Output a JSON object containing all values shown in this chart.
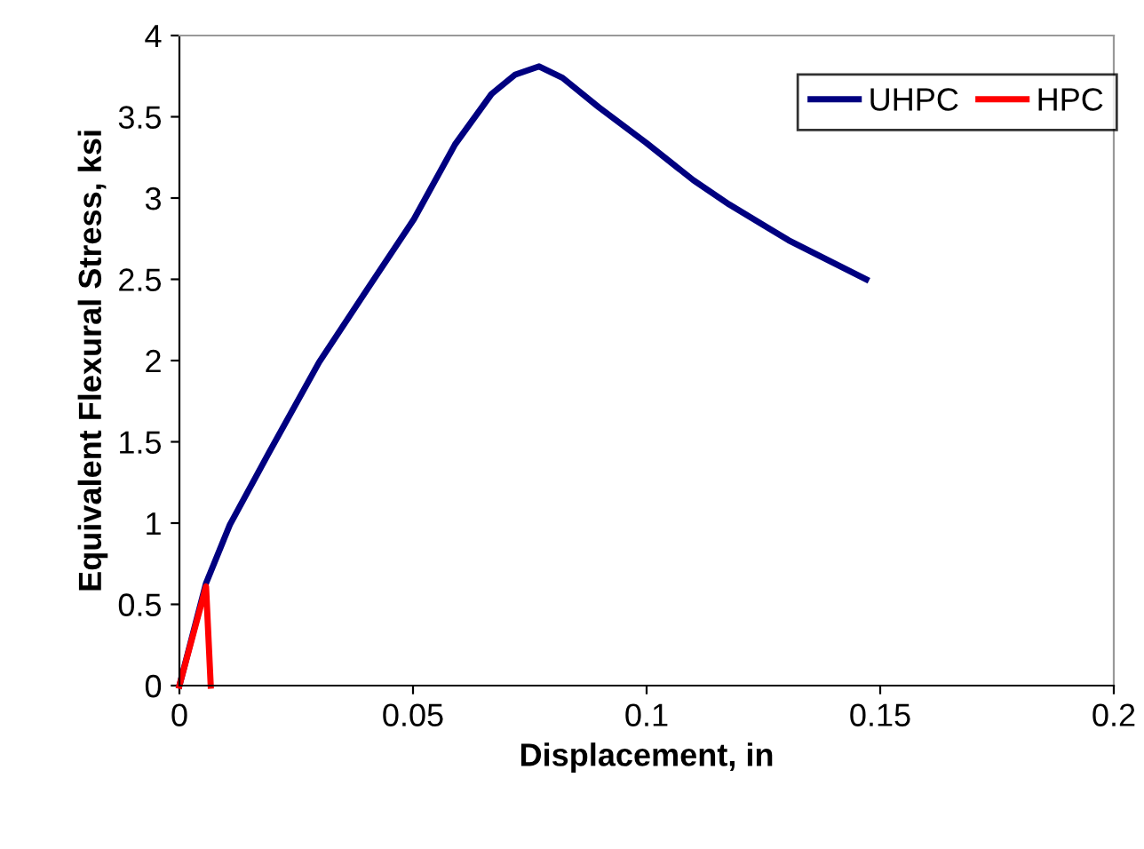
{
  "chart_data": {
    "type": "line",
    "xlabel": "Displacement, in",
    "ylabel": "Equivalent Flexural Stress, ksi",
    "series": [
      {
        "name": "UHPC",
        "color": "#000080",
        "x": [
          0,
          0.0057,
          0.0108,
          0.0191,
          0.0299,
          0.04,
          0.0502,
          0.059,
          0.0668,
          0.0719,
          0.077,
          0.082,
          0.0897,
          0.0999,
          0.11,
          0.1177,
          0.1304,
          0.147
        ],
        "values": [
          0,
          0.63,
          0.99,
          1.43,
          1.99,
          2.43,
          2.87,
          3.33,
          3.64,
          3.76,
          3.81,
          3.74,
          3.56,
          3.34,
          3.11,
          2.96,
          2.74,
          2.5
        ]
      },
      {
        "name": "HPC",
        "color": "#ff0000",
        "x": [
          0,
          0.0057,
          0.0067
        ],
        "values": [
          0,
          0.61,
          0
        ]
      }
    ],
    "xlim": [
      0,
      0.2
    ],
    "xticks": [
      0,
      0.05,
      0.1,
      0.15,
      0.2
    ],
    "ylim": [
      0,
      4
    ],
    "yticks": [
      0,
      0.5,
      1,
      1.5,
      2,
      2.5,
      3,
      3.5,
      4
    ],
    "grid": false,
    "legend": "top right",
    "marker": "none",
    "line_style": "solid"
  }
}
